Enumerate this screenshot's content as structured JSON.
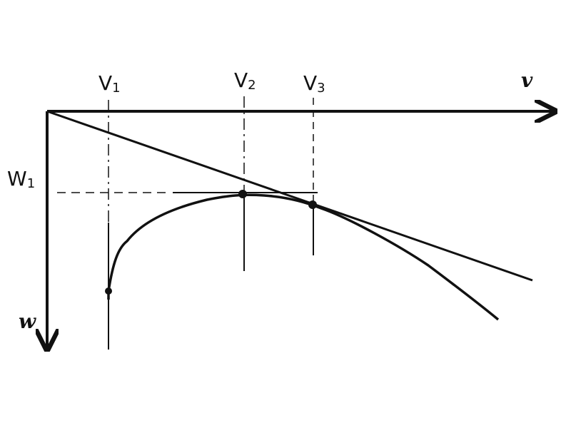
{
  "axes": {
    "x_label": "v",
    "y_label": "w"
  },
  "markers": {
    "v1": {
      "main": "V",
      "sub": "1"
    },
    "v2": {
      "main": "V",
      "sub": "2"
    },
    "v3": {
      "main": "V",
      "sub": "3"
    },
    "w1": {
      "main": "W",
      "sub": "1"
    }
  },
  "colors": {
    "ink": "#111111",
    "background": "#ffffff"
  }
}
